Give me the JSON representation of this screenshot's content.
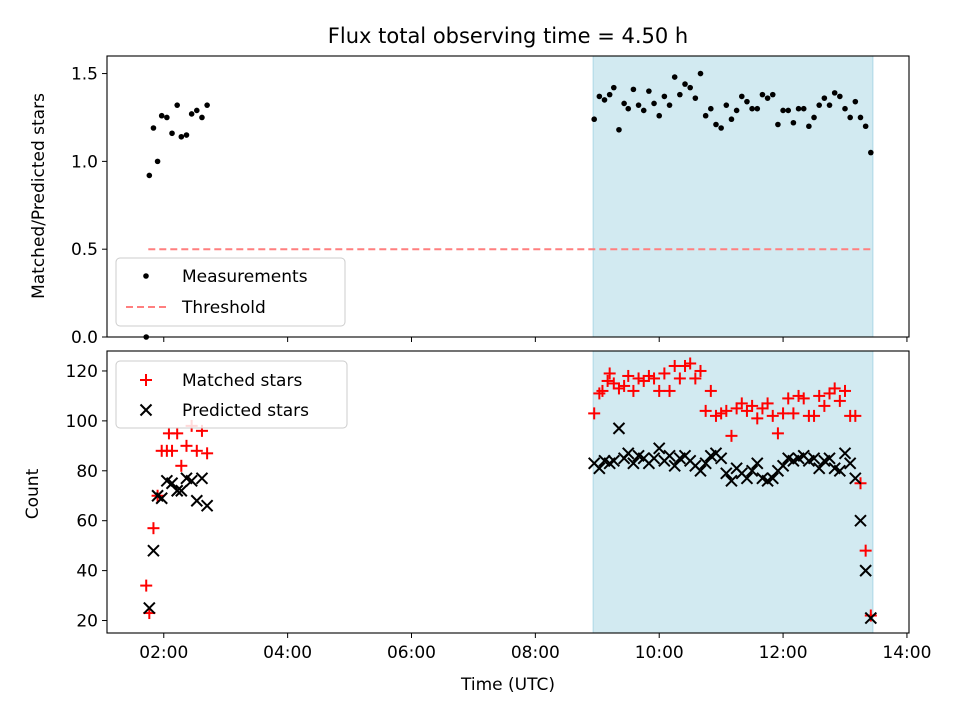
{
  "title": "Flux total observing time = 4.50 h",
  "colors": {
    "band": "#add8e6",
    "threshold": "#ff7f7f",
    "matched": "#ff0000",
    "predicted": "#000000",
    "measure": "#000000"
  },
  "chart_data": [
    {
      "type": "scatter",
      "ylabel": "Matched/Predicted stars",
      "ylim": [
        0,
        1.6
      ],
      "yticks": [
        "0.0",
        "0.5",
        "1.0",
        "1.5"
      ],
      "xlim": [
        "01:05",
        "14:02"
      ],
      "shaded_region": [
        "08:56",
        "13:27"
      ],
      "legend_position": "lower-left",
      "threshold": {
        "name": "Threshold",
        "y": 0.5,
        "x": [
          "01:45",
          "13:27"
        ],
        "style": "dashed"
      },
      "series": [
        {
          "name": "Measurements",
          "points": [
            [
              "01:43",
              0.0
            ],
            [
              "01:46",
              0.92
            ],
            [
              "01:50",
              1.19
            ],
            [
              "01:54",
              1.0
            ],
            [
              "01:58",
              1.26
            ],
            [
              "02:03",
              1.25
            ],
            [
              "02:08",
              1.16
            ],
            [
              "02:13",
              1.32
            ],
            [
              "02:17",
              1.14
            ],
            [
              "02:22",
              1.15
            ],
            [
              "02:27",
              1.27
            ],
            [
              "02:32",
              1.29
            ],
            [
              "02:37",
              1.25
            ],
            [
              "02:42",
              1.32
            ],
            [
              "08:57",
              1.24
            ],
            [
              "09:02",
              1.37
            ],
            [
              "09:07",
              1.35
            ],
            [
              "09:12",
              1.38
            ],
            [
              "09:16",
              1.42
            ],
            [
              "09:21",
              1.18
            ],
            [
              "09:26",
              1.33
            ],
            [
              "09:30",
              1.3
            ],
            [
              "09:35",
              1.41
            ],
            [
              "09:40",
              1.32
            ],
            [
              "09:45",
              1.29
            ],
            [
              "09:50",
              1.4
            ],
            [
              "09:55",
              1.33
            ],
            [
              "10:00",
              1.26
            ],
            [
              "10:05",
              1.37
            ],
            [
              "10:10",
              1.32
            ],
            [
              "10:15",
              1.48
            ],
            [
              "10:20",
              1.38
            ],
            [
              "10:25",
              1.44
            ],
            [
              "10:30",
              1.42
            ],
            [
              "10:35",
              1.36
            ],
            [
              "10:40",
              1.5
            ],
            [
              "10:45",
              1.26
            ],
            [
              "10:50",
              1.3
            ],
            [
              "10:55",
              1.21
            ],
            [
              "11:00",
              1.19
            ],
            [
              "11:05",
              1.32
            ],
            [
              "11:10",
              1.24
            ],
            [
              "11:15",
              1.29
            ],
            [
              "11:20",
              1.37
            ],
            [
              "11:25",
              1.34
            ],
            [
              "11:30",
              1.3
            ],
            [
              "11:35",
              1.3
            ],
            [
              "11:40",
              1.38
            ],
            [
              "11:45",
              1.36
            ],
            [
              "11:50",
              1.38
            ],
            [
              "11:55",
              1.21
            ],
            [
              "12:00",
              1.29
            ],
            [
              "12:05",
              1.29
            ],
            [
              "12:10",
              1.22
            ],
            [
              "12:15",
              1.3
            ],
            [
              "12:20",
              1.3
            ],
            [
              "12:25",
              1.2
            ],
            [
              "12:30",
              1.25
            ],
            [
              "12:35",
              1.32
            ],
            [
              "12:40",
              1.36
            ],
            [
              "12:45",
              1.32
            ],
            [
              "12:50",
              1.39
            ],
            [
              "12:55",
              1.37
            ],
            [
              "13:00",
              1.3
            ],
            [
              "13:05",
              1.25
            ],
            [
              "13:10",
              1.34
            ],
            [
              "13:15",
              1.25
            ],
            [
              "13:20",
              1.2
            ],
            [
              "13:25",
              1.05
            ]
          ]
        }
      ]
    },
    {
      "type": "scatter",
      "ylabel": "Count",
      "xlabel": "Time (UTC)",
      "ylim": [
        15,
        128
      ],
      "yticks": [
        "20",
        "40",
        "60",
        "80",
        "100",
        "120"
      ],
      "xlim": [
        "01:05",
        "14:02"
      ],
      "xticks": [
        "02:00",
        "04:00",
        "06:00",
        "08:00",
        "10:00",
        "12:00",
        "14:00"
      ],
      "shaded_region": [
        "08:56",
        "13:27"
      ],
      "legend_position": "upper-left",
      "series": [
        {
          "name": "Matched stars",
          "marker": "plus",
          "points": [
            [
              "01:43",
              34
            ],
            [
              "01:46",
              23
            ],
            [
              "01:50",
              57
            ],
            [
              "01:54",
              70
            ],
            [
              "01:58",
              88
            ],
            [
              "02:03",
              88
            ],
            [
              "02:05",
              95
            ],
            [
              "02:08",
              88
            ],
            [
              "02:13",
              95
            ],
            [
              "02:17",
              82
            ],
            [
              "02:22",
              90
            ],
            [
              "02:27",
              98
            ],
            [
              "02:32",
              88
            ],
            [
              "02:37",
              96
            ],
            [
              "02:42",
              87
            ],
            [
              "08:57",
              103
            ],
            [
              "09:02",
              111
            ],
            [
              "09:05",
              112
            ],
            [
              "09:10",
              116
            ],
            [
              "09:12",
              119
            ],
            [
              "09:16",
              115
            ],
            [
              "09:21",
              113
            ],
            [
              "09:26",
              114
            ],
            [
              "09:30",
              118
            ],
            [
              "09:35",
              112
            ],
            [
              "09:40",
              117
            ],
            [
              "09:45",
              116
            ],
            [
              "09:50",
              118
            ],
            [
              "09:55",
              117
            ],
            [
              "10:00",
              112
            ],
            [
              "10:05",
              119
            ],
            [
              "10:10",
              112
            ],
            [
              "10:15",
              122
            ],
            [
              "10:20",
              117
            ],
            [
              "10:25",
              122
            ],
            [
              "10:30",
              123
            ],
            [
              "10:35",
              117
            ],
            [
              "10:40",
              120
            ],
            [
              "10:45",
              104
            ],
            [
              "10:50",
              112
            ],
            [
              "10:55",
              102
            ],
            [
              "11:00",
              103
            ],
            [
              "11:05",
              104
            ],
            [
              "11:10",
              94
            ],
            [
              "11:15",
              105
            ],
            [
              "11:20",
              107
            ],
            [
              "11:25",
              104
            ],
            [
              "11:30",
              106
            ],
            [
              "11:35",
              101
            ],
            [
              "11:40",
              105
            ],
            [
              "11:45",
              107
            ],
            [
              "11:50",
              102
            ],
            [
              "11:55",
              95
            ],
            [
              "12:00",
              103
            ],
            [
              "12:05",
              109
            ],
            [
              "12:10",
              103
            ],
            [
              "12:15",
              110
            ],
            [
              "12:20",
              109
            ],
            [
              "12:25",
              102
            ],
            [
              "12:30",
              102
            ],
            [
              "12:35",
              110
            ],
            [
              "12:40",
              106
            ],
            [
              "12:45",
              111
            ],
            [
              "12:50",
              113
            ],
            [
              "12:55",
              108
            ],
            [
              "13:00",
              112
            ],
            [
              "13:05",
              102
            ],
            [
              "13:10",
              102
            ],
            [
              "13:15",
              75
            ],
            [
              "13:20",
              48
            ],
            [
              "13:25",
              22
            ]
          ]
        },
        {
          "name": "Predicted stars",
          "marker": "x",
          "points": [
            [
              "01:46",
              25
            ],
            [
              "01:50",
              48
            ],
            [
              "01:54",
              70
            ],
            [
              "01:58",
              69
            ],
            [
              "02:03",
              76
            ],
            [
              "02:08",
              75
            ],
            [
              "02:13",
              72
            ],
            [
              "02:17",
              72
            ],
            [
              "02:22",
              77
            ],
            [
              "02:27",
              76
            ],
            [
              "02:32",
              68
            ],
            [
              "02:37",
              77
            ],
            [
              "02:42",
              66
            ],
            [
              "08:57",
              83
            ],
            [
              "09:02",
              81
            ],
            [
              "09:07",
              84
            ],
            [
              "09:12",
              83
            ],
            [
              "09:16",
              84
            ],
            [
              "09:21",
              97
            ],
            [
              "09:26",
              85
            ],
            [
              "09:30",
              87
            ],
            [
              "09:35",
              83
            ],
            [
              "09:40",
              86
            ],
            [
              "09:45",
              85
            ],
            [
              "09:50",
              83
            ],
            [
              "09:55",
              85
            ],
            [
              "10:00",
              89
            ],
            [
              "10:05",
              84
            ],
            [
              "10:10",
              86
            ],
            [
              "10:15",
              82
            ],
            [
              "10:20",
              85
            ],
            [
              "10:25",
              86
            ],
            [
              "10:30",
              84
            ],
            [
              "10:35",
              82
            ],
            [
              "10:40",
              80
            ],
            [
              "10:45",
              83
            ],
            [
              "10:50",
              86
            ],
            [
              "10:55",
              87
            ],
            [
              "11:00",
              85
            ],
            [
              "11:05",
              79
            ],
            [
              "11:10",
              76
            ],
            [
              "11:15",
              81
            ],
            [
              "11:20",
              79
            ],
            [
              "11:25",
              77
            ],
            [
              "11:30",
              80
            ],
            [
              "11:35",
              83
            ],
            [
              "11:40",
              77
            ],
            [
              "11:45",
              76
            ],
            [
              "11:50",
              77
            ],
            [
              "11:55",
              80
            ],
            [
              "12:00",
              82
            ],
            [
              "12:05",
              85
            ],
            [
              "12:10",
              84
            ],
            [
              "12:15",
              85
            ],
            [
              "12:20",
              86
            ],
            [
              "12:25",
              84
            ],
            [
              "12:30",
              85
            ],
            [
              "12:35",
              81
            ],
            [
              "12:40",
              84
            ],
            [
              "12:45",
              85
            ],
            [
              "12:50",
              81
            ],
            [
              "12:55",
              80
            ],
            [
              "13:00",
              87
            ],
            [
              "13:05",
              83
            ],
            [
              "13:10",
              77
            ],
            [
              "13:15",
              60
            ],
            [
              "13:20",
              40
            ],
            [
              "13:25",
              21
            ]
          ]
        }
      ]
    }
  ]
}
